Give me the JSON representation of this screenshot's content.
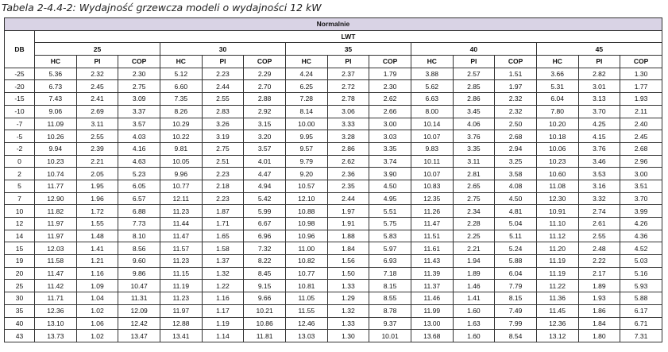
{
  "title": "Tabela 2-4.4-2: Wydajność grzewcza modeli o wydajności 12 kW",
  "table": {
    "group_label": "Normalnie",
    "lwt_label": "LWT",
    "row_header": "DB",
    "temperatures": [
      "25",
      "30",
      "35",
      "40",
      "45"
    ],
    "metrics": [
      "HC",
      "PI",
      "COP"
    ],
    "rows": [
      {
        "db": "-25",
        "cells": [
          "5.36",
          "2.32",
          "2.30",
          "5.12",
          "2.23",
          "2.29",
          "4.24",
          "2.37",
          "1.79",
          "3.88",
          "2.57",
          "1.51",
          "3.66",
          "2.82",
          "1.30"
        ]
      },
      {
        "db": "-20",
        "cells": [
          "6.73",
          "2.45",
          "2.75",
          "6.60",
          "2.44",
          "2.70",
          "6.25",
          "2.72",
          "2.30",
          "5.62",
          "2.85",
          "1.97",
          "5.31",
          "3.01",
          "1.77"
        ]
      },
      {
        "db": "-15",
        "cells": [
          "7.43",
          "2.41",
          "3.09",
          "7.35",
          "2.55",
          "2.88",
          "7.28",
          "2.78",
          "2.62",
          "6.63",
          "2.86",
          "2.32",
          "6.04",
          "3.13",
          "1.93"
        ]
      },
      {
        "db": "-10",
        "cells": [
          "9.06",
          "2.69",
          "3.37",
          "8.26",
          "2.83",
          "2.92",
          "8.14",
          "3.06",
          "2.66",
          "8.00",
          "3.45",
          "2.32",
          "7.80",
          "3.70",
          "2.11"
        ]
      },
      {
        "db": "-7",
        "cells": [
          "11.09",
          "3.11",
          "3.57",
          "10.29",
          "3.26",
          "3.15",
          "10.00",
          "3.33",
          "3.00",
          "10.14",
          "4.06",
          "2.50",
          "10.20",
          "4.25",
          "2.40"
        ]
      },
      {
        "db": "-5",
        "cells": [
          "10.26",
          "2.55",
          "4.03",
          "10.22",
          "3.19",
          "3.20",
          "9.95",
          "3.28",
          "3.03",
          "10.07",
          "3.76",
          "2.68",
          "10.18",
          "4.15",
          "2.45"
        ]
      },
      {
        "db": "-2",
        "cells": [
          "9.94",
          "2.39",
          "4.16",
          "9.81",
          "2.75",
          "3.57",
          "9.57",
          "2.86",
          "3.35",
          "9.83",
          "3.35",
          "2.94",
          "10.06",
          "3.76",
          "2.68"
        ]
      },
      {
        "db": "0",
        "cells": [
          "10.23",
          "2.21",
          "4.63",
          "10.05",
          "2.51",
          "4.01",
          "9.79",
          "2.62",
          "3.74",
          "10.11",
          "3.11",
          "3.25",
          "10.23",
          "3.46",
          "2.96"
        ]
      },
      {
        "db": "2",
        "cells": [
          "10.74",
          "2.05",
          "5.23",
          "9.96",
          "2.23",
          "4.47",
          "9.20",
          "2.36",
          "3.90",
          "10.07",
          "2.81",
          "3.58",
          "10.60",
          "3.53",
          "3.00"
        ]
      },
      {
        "db": "5",
        "cells": [
          "11.77",
          "1.95",
          "6.05",
          "10.77",
          "2.18",
          "4.94",
          "10.57",
          "2.35",
          "4.50",
          "10.83",
          "2.65",
          "4.08",
          "11.08",
          "3.16",
          "3.51"
        ]
      },
      {
        "db": "7",
        "cells": [
          "12.90",
          "1.96",
          "6.57",
          "12.11",
          "2.23",
          "5.42",
          "12.10",
          "2.44",
          "4.95",
          "12.35",
          "2.75",
          "4.50",
          "12.30",
          "3.32",
          "3.70"
        ]
      },
      {
        "db": "10",
        "cells": [
          "11.82",
          "1.72",
          "6.88",
          "11.23",
          "1.87",
          "5.99",
          "10.88",
          "1.97",
          "5.51",
          "11.26",
          "2.34",
          "4.81",
          "10.91",
          "2.74",
          "3.99"
        ]
      },
      {
        "db": "12",
        "cells": [
          "11.97",
          "1.55",
          "7.73",
          "11.44",
          "1.71",
          "6.67",
          "10.98",
          "1.91",
          "5.75",
          "11.47",
          "2.28",
          "5.04",
          "11.10",
          "2.61",
          "4.26"
        ]
      },
      {
        "db": "14",
        "cells": [
          "11.97",
          "1.48",
          "8.10",
          "11.47",
          "1.65",
          "6.96",
          "10.96",
          "1.88",
          "5.83",
          "11.51",
          "2.25",
          "5.11",
          "11.12",
          "2.55",
          "4.36"
        ]
      },
      {
        "db": "15",
        "cells": [
          "12.03",
          "1.41",
          "8.56",
          "11.57",
          "1.58",
          "7.32",
          "11.00",
          "1.84",
          "5.97",
          "11.61",
          "2.21",
          "5.24",
          "11.20",
          "2.48",
          "4.52"
        ]
      },
      {
        "db": "19",
        "cells": [
          "11.58",
          "1.21",
          "9.60",
          "11.23",
          "1.37",
          "8.22",
          "10.82",
          "1.56",
          "6.93",
          "11.43",
          "1.94",
          "5.88",
          "11.19",
          "2.22",
          "5.03"
        ]
      },
      {
        "db": "20",
        "cells": [
          "11.47",
          "1.16",
          "9.86",
          "11.15",
          "1.32",
          "8.45",
          "10.77",
          "1.50",
          "7.18",
          "11.39",
          "1.89",
          "6.04",
          "11.19",
          "2.17",
          "5.16"
        ]
      },
      {
        "db": "25",
        "cells": [
          "11.42",
          "1.09",
          "10.47",
          "11.19",
          "1.22",
          "9.15",
          "10.81",
          "1.33",
          "8.15",
          "11.37",
          "1.46",
          "7.79",
          "11.22",
          "1.89",
          "5.93"
        ]
      },
      {
        "db": "30",
        "cells": [
          "11.71",
          "1.04",
          "11.31",
          "11.23",
          "1.16",
          "9.66",
          "11.05",
          "1.29",
          "8.55",
          "11.46",
          "1.41",
          "8.15",
          "11.36",
          "1.93",
          "5.88"
        ]
      },
      {
        "db": "35",
        "cells": [
          "12.36",
          "1.02",
          "12.09",
          "11.97",
          "1.17",
          "10.21",
          "11.55",
          "1.32",
          "8.78",
          "11.99",
          "1.60",
          "7.49",
          "11.45",
          "1.86",
          "6.17"
        ]
      },
      {
        "db": "40",
        "cells": [
          "13.10",
          "1.06",
          "12.42",
          "12.88",
          "1.19",
          "10.86",
          "12.46",
          "1.33",
          "9.37",
          "13.00",
          "1.63",
          "7.99",
          "12.36",
          "1.84",
          "6.71"
        ]
      },
      {
        "db": "43",
        "cells": [
          "13.73",
          "1.02",
          "13.47",
          "13.41",
          "1.14",
          "11.81",
          "13.03",
          "1.30",
          "10.01",
          "13.68",
          "1.60",
          "8.54",
          "13.12",
          "1.80",
          "7.31"
        ]
      }
    ]
  }
}
